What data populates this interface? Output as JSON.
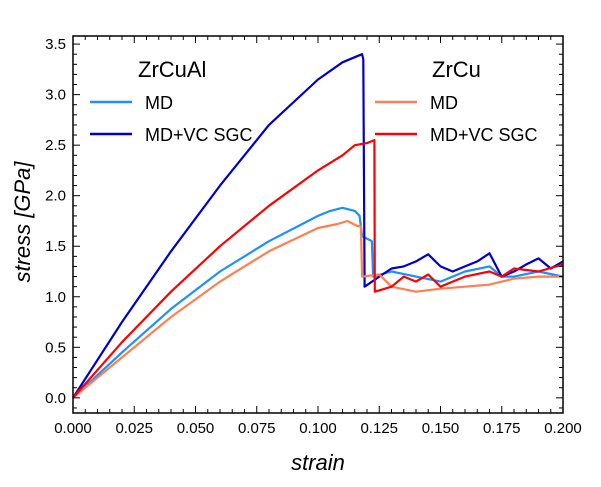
{
  "chart_data": {
    "type": "line",
    "title": "",
    "xlabel": "strain",
    "ylabel": "stress [GPa]",
    "xlim": [
      0,
      0.2
    ],
    "ylim": [
      -0.15,
      3.58
    ],
    "xticks": [
      "0.000",
      "0.025",
      "0.050",
      "0.075",
      "0.100",
      "0.125",
      "0.150",
      "0.175",
      "0.200"
    ],
    "yticks": [
      "0.0",
      "0.5",
      "1.0",
      "1.5",
      "2.0",
      "2.5",
      "3.0",
      "3.5"
    ],
    "grid": false,
    "legends": [
      {
        "title": "ZrCuAl",
        "placement": "top-left",
        "entries": [
          "MD",
          "MD+VC SGC"
        ]
      },
      {
        "title": "ZrCu",
        "placement": "top-right",
        "entries": [
          "MD",
          "MD+VC SGC"
        ]
      }
    ],
    "series": [
      {
        "name": "ZrCuAl MD",
        "color": "#1e8fff",
        "x": [
          0,
          0.02,
          0.04,
          0.06,
          0.08,
          0.1,
          0.105,
          0.11,
          0.115,
          0.117,
          0.118,
          0.122,
          0.1225,
          0.13,
          0.14,
          0.15,
          0.16,
          0.17,
          0.175,
          0.18,
          0.19,
          0.2
        ],
        "y": [
          0,
          0.45,
          0.88,
          1.25,
          1.55,
          1.8,
          1.85,
          1.88,
          1.85,
          1.8,
          1.6,
          1.55,
          1.2,
          1.25,
          1.2,
          1.15,
          1.25,
          1.3,
          1.2,
          1.2,
          1.25,
          1.2
        ]
      },
      {
        "name": "ZrCuAl MD+VC SGC",
        "color": "#0000cc",
        "x": [
          0,
          0.02,
          0.04,
          0.06,
          0.08,
          0.1,
          0.11,
          0.116,
          0.118,
          0.1185,
          0.119,
          0.125,
          0.13,
          0.135,
          0.14,
          0.145,
          0.15,
          0.155,
          0.16,
          0.165,
          0.17,
          0.175,
          0.18,
          0.185,
          0.19,
          0.195,
          0.2
        ],
        "y": [
          0,
          0.75,
          1.45,
          2.1,
          2.7,
          3.15,
          3.32,
          3.38,
          3.4,
          3.35,
          1.1,
          1.2,
          1.28,
          1.3,
          1.35,
          1.42,
          1.3,
          1.25,
          1.3,
          1.35,
          1.43,
          1.2,
          1.25,
          1.32,
          1.38,
          1.28,
          1.35
        ]
      },
      {
        "name": "ZrCu MD",
        "color": "#ff7f50",
        "x": [
          0,
          0.02,
          0.04,
          0.06,
          0.08,
          0.1,
          0.108,
          0.112,
          0.116,
          0.1175,
          0.118,
          0.125,
          0.13,
          0.14,
          0.15,
          0.16,
          0.17,
          0.18,
          0.19,
          0.2
        ],
        "y": [
          0,
          0.4,
          0.8,
          1.15,
          1.45,
          1.68,
          1.72,
          1.75,
          1.7,
          1.7,
          1.2,
          1.22,
          1.1,
          1.05,
          1.08,
          1.1,
          1.12,
          1.18,
          1.2,
          1.2
        ]
      },
      {
        "name": "ZrCu MD+VC SGC",
        "color": "#ff0000",
        "x": [
          0,
          0.02,
          0.04,
          0.06,
          0.08,
          0.1,
          0.11,
          0.115,
          0.12,
          0.123,
          0.1232,
          0.13,
          0.135,
          0.14,
          0.145,
          0.15,
          0.155,
          0.16,
          0.17,
          0.175,
          0.18,
          0.19,
          0.2
        ],
        "y": [
          0,
          0.55,
          1.05,
          1.5,
          1.9,
          2.25,
          2.4,
          2.5,
          2.52,
          2.55,
          1.05,
          1.1,
          1.2,
          1.15,
          1.22,
          1.1,
          1.15,
          1.2,
          1.25,
          1.2,
          1.28,
          1.25,
          1.32
        ]
      }
    ]
  }
}
